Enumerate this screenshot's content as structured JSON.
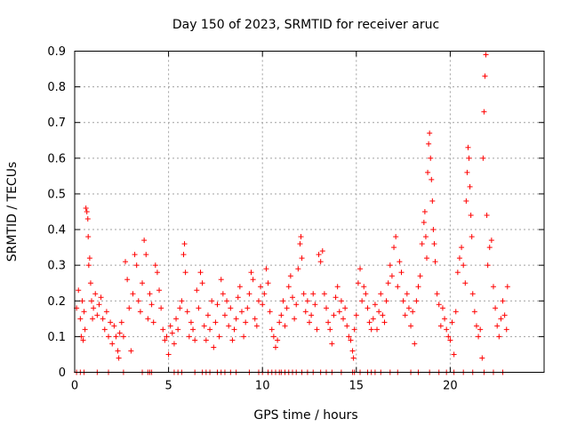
{
  "chart_data": {
    "type": "scatter",
    "title": "Day 150 of 2023, SRMTID for receiver aruc",
    "xlabel": "GPS time / hours",
    "ylabel": "SRMTID / TECUs",
    "xlim": [
      0,
      25
    ],
    "ylim": [
      0,
      0.9
    ],
    "xticks": [
      0,
      5,
      10,
      15,
      20
    ],
    "yticks": [
      0,
      0.1,
      0.2,
      0.3,
      0.4,
      0.5,
      0.6,
      0.7,
      0.8,
      0.9
    ],
    "xtick_labels": [
      "0",
      "5",
      "10",
      "15",
      "20"
    ],
    "ytick_labels": [
      "0",
      "0.1",
      "0.2",
      "0.3",
      "0.4",
      "0.5",
      "0.6",
      "0.7",
      "0.8",
      "0.9"
    ],
    "grid": true,
    "marker": "+",
    "color": "#ff0000",
    "series": [
      {
        "name": "SRMTID",
        "points": [
          [
            0.1,
            0.18
          ],
          [
            0.2,
            0.23
          ],
          [
            0.3,
            0.15
          ],
          [
            0.35,
            0.1
          ],
          [
            0.4,
            0.2
          ],
          [
            0.45,
            0.09
          ],
          [
            0.5,
            0.17
          ],
          [
            0.55,
            0.12
          ],
          [
            0.6,
            0.46
          ],
          [
            0.65,
            0.45
          ],
          [
            0.7,
            0.43
          ],
          [
            0.72,
            0.38
          ],
          [
            0.75,
            0.3
          ],
          [
            0.8,
            0.32
          ],
          [
            0.85,
            0.25
          ],
          [
            0.9,
            0.2
          ],
          [
            0.95,
            0.15
          ],
          [
            1.0,
            0.18
          ],
          [
            1.1,
            0.22
          ],
          [
            1.2,
            0.16
          ],
          [
            1.3,
            0.19
          ],
          [
            1.4,
            0.21
          ],
          [
            1.5,
            0.15
          ],
          [
            1.6,
            0.12
          ],
          [
            1.7,
            0.17
          ],
          [
            1.8,
            0.1
          ],
          [
            1.9,
            0.14
          ],
          [
            2.0,
            0.08
          ],
          [
            2.1,
            0.13
          ],
          [
            2.2,
            0.1
          ],
          [
            2.3,
            0.06
          ],
          [
            2.35,
            0.04
          ],
          [
            2.4,
            0.11
          ],
          [
            2.5,
            0.14
          ],
          [
            2.6,
            0.1
          ],
          [
            2.7,
            0.31
          ],
          [
            2.8,
            0.26
          ],
          [
            2.9,
            0.18
          ],
          [
            3.0,
            0.06
          ],
          [
            3.1,
            0.22
          ],
          [
            3.2,
            0.33
          ],
          [
            3.3,
            0.3
          ],
          [
            3.4,
            0.2
          ],
          [
            3.5,
            0.17
          ],
          [
            3.6,
            0.25
          ],
          [
            3.7,
            0.37
          ],
          [
            3.8,
            0.33
          ],
          [
            3.9,
            0.15
          ],
          [
            4.0,
            0.22
          ],
          [
            4.1,
            0.19
          ],
          [
            4.2,
            0.14
          ],
          [
            4.3,
            0.3
          ],
          [
            4.4,
            0.28
          ],
          [
            4.5,
            0.23
          ],
          [
            4.6,
            0.18
          ],
          [
            4.7,
            0.12
          ],
          [
            4.8,
            0.09
          ],
          [
            4.9,
            0.1
          ],
          [
            5.0,
            0.05
          ],
          [
            5.1,
            0.13
          ],
          [
            5.2,
            0.11
          ],
          [
            5.3,
            0.08
          ],
          [
            5.4,
            0.15
          ],
          [
            5.5,
            0.12
          ],
          [
            5.6,
            0.18
          ],
          [
            5.7,
            0.2
          ],
          [
            5.8,
            0.33
          ],
          [
            5.85,
            0.36
          ],
          [
            5.9,
            0.28
          ],
          [
            6.0,
            0.17
          ],
          [
            6.1,
            0.1
          ],
          [
            6.2,
            0.14
          ],
          [
            6.3,
            0.12
          ],
          [
            6.4,
            0.09
          ],
          [
            6.5,
            0.23
          ],
          [
            6.6,
            0.18
          ],
          [
            6.7,
            0.28
          ],
          [
            6.8,
            0.25
          ],
          [
            6.9,
            0.13
          ],
          [
            7.0,
            0.09
          ],
          [
            7.1,
            0.16
          ],
          [
            7.2,
            0.12
          ],
          [
            7.3,
            0.2
          ],
          [
            7.4,
            0.07
          ],
          [
            7.5,
            0.14
          ],
          [
            7.6,
            0.19
          ],
          [
            7.7,
            0.1
          ],
          [
            7.8,
            0.26
          ],
          [
            7.9,
            0.22
          ],
          [
            8.0,
            0.16
          ],
          [
            8.1,
            0.2
          ],
          [
            8.2,
            0.13
          ],
          [
            8.3,
            0.18
          ],
          [
            8.4,
            0.09
          ],
          [
            8.5,
            0.12
          ],
          [
            8.6,
            0.15
          ],
          [
            8.7,
            0.21
          ],
          [
            8.8,
            0.24
          ],
          [
            8.9,
            0.17
          ],
          [
            9.0,
            0.1
          ],
          [
            9.1,
            0.14
          ],
          [
            9.2,
            0.18
          ],
          [
            9.3,
            0.22
          ],
          [
            9.4,
            0.28
          ],
          [
            9.5,
            0.26
          ],
          [
            9.6,
            0.15
          ],
          [
            9.7,
            0.13
          ],
          [
            9.8,
            0.2
          ],
          [
            9.9,
            0.24
          ],
          [
            10.0,
            0.19
          ],
          [
            10.1,
            0.22
          ],
          [
            10.2,
            0.29
          ],
          [
            10.3,
            0.25
          ],
          [
            10.4,
            0.17
          ],
          [
            10.5,
            0.12
          ],
          [
            10.6,
            0.1
          ],
          [
            10.7,
            0.07
          ],
          [
            10.8,
            0.09
          ],
          [
            10.9,
            0.14
          ],
          [
            11.0,
            0.16
          ],
          [
            11.1,
            0.2
          ],
          [
            11.2,
            0.13
          ],
          [
            11.3,
            0.18
          ],
          [
            11.4,
            0.24
          ],
          [
            11.5,
            0.27
          ],
          [
            11.6,
            0.21
          ],
          [
            11.7,
            0.15
          ],
          [
            11.8,
            0.19
          ],
          [
            11.9,
            0.29
          ],
          [
            12.0,
            0.36
          ],
          [
            12.05,
            0.38
          ],
          [
            12.1,
            0.32
          ],
          [
            12.2,
            0.22
          ],
          [
            12.3,
            0.17
          ],
          [
            12.4,
            0.2
          ],
          [
            12.5,
            0.14
          ],
          [
            12.6,
            0.16
          ],
          [
            12.7,
            0.22
          ],
          [
            12.8,
            0.19
          ],
          [
            12.9,
            0.12
          ],
          [
            13.0,
            0.33
          ],
          [
            13.1,
            0.31
          ],
          [
            13.2,
            0.34
          ],
          [
            13.3,
            0.22
          ],
          [
            13.4,
            0.18
          ],
          [
            13.5,
            0.14
          ],
          [
            13.6,
            0.12
          ],
          [
            13.7,
            0.08
          ],
          [
            13.8,
            0.16
          ],
          [
            13.9,
            0.21
          ],
          [
            14.0,
            0.24
          ],
          [
            14.1,
            0.17
          ],
          [
            14.2,
            0.2
          ],
          [
            14.3,
            0.15
          ],
          [
            14.4,
            0.18
          ],
          [
            14.5,
            0.13
          ],
          [
            14.6,
            0.1
          ],
          [
            14.7,
            0.09
          ],
          [
            14.8,
            0.06
          ],
          [
            14.85,
            0.04
          ],
          [
            14.9,
            0.12
          ],
          [
            15.0,
            0.16
          ],
          [
            15.1,
            0.25
          ],
          [
            15.2,
            0.29
          ],
          [
            15.3,
            0.2
          ],
          [
            15.4,
            0.24
          ],
          [
            15.5,
            0.22
          ],
          [
            15.6,
            0.18
          ],
          [
            15.7,
            0.14
          ],
          [
            15.8,
            0.12
          ],
          [
            15.9,
            0.15
          ],
          [
            16.0,
            0.19
          ],
          [
            16.1,
            0.12
          ],
          [
            16.2,
            0.17
          ],
          [
            16.3,
            0.22
          ],
          [
            16.4,
            0.16
          ],
          [
            16.5,
            0.14
          ],
          [
            16.6,
            0.2
          ],
          [
            16.7,
            0.25
          ],
          [
            16.8,
            0.3
          ],
          [
            16.9,
            0.27
          ],
          [
            17.0,
            0.35
          ],
          [
            17.1,
            0.38
          ],
          [
            17.2,
            0.24
          ],
          [
            17.3,
            0.31
          ],
          [
            17.4,
            0.28
          ],
          [
            17.5,
            0.2
          ],
          [
            17.6,
            0.16
          ],
          [
            17.7,
            0.22
          ],
          [
            17.8,
            0.18
          ],
          [
            17.9,
            0.13
          ],
          [
            18.0,
            0.17
          ],
          [
            18.1,
            0.08
          ],
          [
            18.2,
            0.2
          ],
          [
            18.3,
            0.24
          ],
          [
            18.4,
            0.27
          ],
          [
            18.5,
            0.36
          ],
          [
            18.6,
            0.42
          ],
          [
            18.65,
            0.45
          ],
          [
            18.7,
            0.38
          ],
          [
            18.75,
            0.32
          ],
          [
            18.8,
            0.56
          ],
          [
            18.85,
            0.64
          ],
          [
            18.9,
            0.67
          ],
          [
            18.95,
            0.6
          ],
          [
            19.0,
            0.54
          ],
          [
            19.05,
            0.48
          ],
          [
            19.1,
            0.4
          ],
          [
            19.15,
            0.36
          ],
          [
            19.2,
            0.31
          ],
          [
            19.3,
            0.22
          ],
          [
            19.4,
            0.19
          ],
          [
            19.5,
            0.13
          ],
          [
            19.6,
            0.18
          ],
          [
            19.7,
            0.15
          ],
          [
            19.8,
            0.12
          ],
          [
            19.9,
            0.1
          ],
          [
            20.0,
            0.09
          ],
          [
            20.1,
            0.14
          ],
          [
            20.2,
            0.05
          ],
          [
            20.3,
            0.17
          ],
          [
            20.4,
            0.28
          ],
          [
            20.5,
            0.32
          ],
          [
            20.6,
            0.35
          ],
          [
            20.7,
            0.3
          ],
          [
            20.8,
            0.25
          ],
          [
            20.85,
            0.48
          ],
          [
            20.9,
            0.56
          ],
          [
            20.95,
            0.63
          ],
          [
            21.0,
            0.6
          ],
          [
            21.05,
            0.52
          ],
          [
            21.1,
            0.44
          ],
          [
            21.15,
            0.38
          ],
          [
            21.2,
            0.22
          ],
          [
            21.3,
            0.17
          ],
          [
            21.4,
            0.13
          ],
          [
            21.5,
            0.1
          ],
          [
            21.6,
            0.12
          ],
          [
            21.7,
            0.04
          ],
          [
            21.75,
            0.6
          ],
          [
            21.8,
            0.73
          ],
          [
            21.85,
            0.83
          ],
          [
            21.9,
            0.89
          ],
          [
            21.95,
            0.44
          ],
          [
            22.0,
            0.3
          ],
          [
            22.1,
            0.35
          ],
          [
            22.2,
            0.37
          ],
          [
            22.3,
            0.24
          ],
          [
            22.4,
            0.18
          ],
          [
            22.5,
            0.13
          ],
          [
            22.6,
            0.1
          ],
          [
            22.7,
            0.15
          ],
          [
            22.8,
            0.2
          ],
          [
            22.9,
            0.16
          ],
          [
            23.0,
            0.12
          ],
          [
            23.05,
            0.24
          ]
        ],
        "zero_points": [
          0.1,
          0.3,
          0.5,
          1.2,
          1.8,
          2.6,
          3.6,
          3.9,
          4.0,
          4.1,
          5.3,
          5.5,
          5.7,
          6.4,
          6.8,
          7.0,
          7.2,
          7.6,
          7.8,
          8.0,
          8.3,
          8.6,
          9.3,
          9.8,
          10.0,
          10.3,
          10.5,
          10.7,
          10.9,
          11.0,
          11.2,
          11.4,
          11.6,
          11.8,
          12.1,
          12.4,
          12.7,
          13.1,
          13.4,
          13.7,
          14.2,
          14.8,
          14.9,
          15.2,
          15.6,
          15.8,
          16.0,
          16.3,
          16.8,
          17.2,
          17.9,
          18.3,
          18.9,
          19.4,
          19.8,
          20.2,
          20.7,
          21.2,
          21.8,
          22.3,
          22.8
        ]
      }
    ]
  }
}
